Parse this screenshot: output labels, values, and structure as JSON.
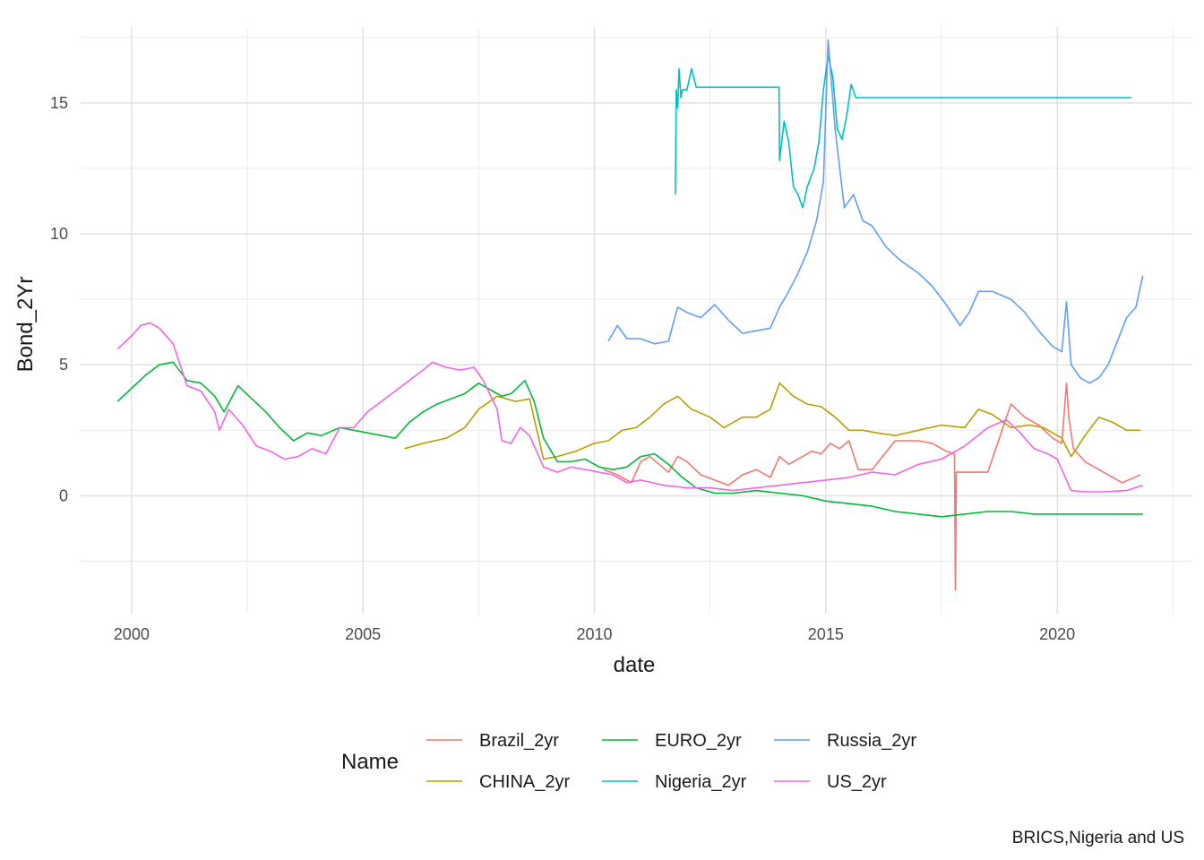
{
  "chart_data": {
    "type": "line",
    "title": "",
    "xlabel": "date",
    "ylabel": "Bond_2Yr",
    "caption": "BRICS,Nigeria and US",
    "legend_title": "Name",
    "legend_position": "bottom",
    "grid": true,
    "x_is_date": true,
    "xlim": [
      1998.9,
      2022.9
    ],
    "ylim": [
      -4.5,
      17.9
    ],
    "x_ticks": [
      2000,
      2005,
      2010,
      2015,
      2020
    ],
    "x_tick_labels": [
      "2000",
      "2005",
      "2010",
      "2015",
      "2020"
    ],
    "y_ticks": [
      0,
      5,
      10,
      15
    ],
    "y_tick_labels": [
      "0",
      "5",
      "10",
      "15"
    ],
    "series": [
      {
        "name": "Brazil_2yr",
        "color": "#F8766D",
        "x": [
          2010.2,
          2010.5,
          2010.8,
          2011.0,
          2011.2,
          2011.4,
          2011.6,
          2011.8,
          2012.0,
          2012.3,
          2012.6,
          2012.9,
          2013.2,
          2013.5,
          2013.8,
          2014.0,
          2014.2,
          2014.5,
          2014.7,
          2014.9,
          2015.1,
          2015.3,
          2015.5,
          2015.7,
          2016.0,
          2016.5,
          2017.0,
          2017.3,
          2017.6,
          2017.78,
          2017.8,
          2017.82,
          2018.0,
          2018.5,
          2019.0,
          2019.3,
          2019.6,
          2019.9,
          2020.1,
          2020.2,
          2020.25,
          2020.35,
          2020.6,
          2021.0,
          2021.4,
          2021.8
        ],
        "y": [
          1.0,
          0.8,
          0.5,
          1.3,
          1.5,
          1.2,
          0.9,
          1.5,
          1.3,
          0.8,
          0.6,
          0.4,
          0.8,
          1.0,
          0.7,
          1.5,
          1.2,
          1.5,
          1.7,
          1.6,
          2.0,
          1.8,
          2.1,
          1.0,
          1.0,
          2.1,
          2.1,
          2.0,
          1.7,
          1.6,
          -3.6,
          0.9,
          0.9,
          0.9,
          3.5,
          3.0,
          2.7,
          2.2,
          2.0,
          4.3,
          3.0,
          1.8,
          1.3,
          0.9,
          0.5,
          0.8
        ]
      },
      {
        "name": "CHINA_2yr",
        "color": "#B79F00",
        "x": [
          2005.9,
          2006.3,
          2006.8,
          2007.2,
          2007.5,
          2007.9,
          2008.3,
          2008.6,
          2008.9,
          2009.2,
          2009.6,
          2010.0,
          2010.3,
          2010.6,
          2010.9,
          2011.2,
          2011.5,
          2011.8,
          2012.1,
          2012.5,
          2012.8,
          2013.2,
          2013.5,
          2013.8,
          2014.0,
          2014.3,
          2014.6,
          2014.9,
          2015.2,
          2015.5,
          2015.8,
          2016.1,
          2016.5,
          2017.0,
          2017.5,
          2018.0,
          2018.3,
          2018.6,
          2019.0,
          2019.4,
          2019.7,
          2020.1,
          2020.3,
          2020.6,
          2020.9,
          2021.2,
          2021.5,
          2021.8
        ],
        "y": [
          1.8,
          2.0,
          2.2,
          2.6,
          3.3,
          3.8,
          3.6,
          3.7,
          1.4,
          1.5,
          1.7,
          2.0,
          2.1,
          2.5,
          2.6,
          3.0,
          3.5,
          3.8,
          3.3,
          3.0,
          2.6,
          3.0,
          3.0,
          3.3,
          4.3,
          3.8,
          3.5,
          3.4,
          3.0,
          2.5,
          2.5,
          2.4,
          2.3,
          2.5,
          2.7,
          2.6,
          3.3,
          3.1,
          2.6,
          2.7,
          2.6,
          2.2,
          1.5,
          2.3,
          3.0,
          2.8,
          2.5,
          2.5
        ]
      },
      {
        "name": "EURO_2yr",
        "color": "#00BA38",
        "x": [
          1999.7,
          2000.0,
          2000.3,
          2000.6,
          2000.9,
          2001.2,
          2001.5,
          2001.8,
          2002.0,
          2002.3,
          2002.6,
          2002.9,
          2003.2,
          2003.5,
          2003.8,
          2004.1,
          2004.5,
          2004.8,
          2005.1,
          2005.4,
          2005.7,
          2006.0,
          2006.3,
          2006.6,
          2006.9,
          2007.2,
          2007.5,
          2007.8,
          2008.0,
          2008.2,
          2008.5,
          2008.7,
          2008.9,
          2009.2,
          2009.5,
          2009.8,
          2010.1,
          2010.4,
          2010.7,
          2011.0,
          2011.3,
          2011.6,
          2011.9,
          2012.2,
          2012.6,
          2013.0,
          2013.5,
          2014.0,
          2014.5,
          2015.0,
          2015.5,
          2016.0,
          2016.5,
          2017.0,
          2017.5,
          2018.0,
          2018.5,
          2019.0,
          2019.5,
          2020.0,
          2020.5,
          2021.0,
          2021.5,
          2021.85
        ],
        "y": [
          3.6,
          4.1,
          4.6,
          5.0,
          5.1,
          4.4,
          4.3,
          3.8,
          3.2,
          4.2,
          3.7,
          3.2,
          2.6,
          2.1,
          2.4,
          2.3,
          2.6,
          2.5,
          2.4,
          2.3,
          2.2,
          2.8,
          3.2,
          3.5,
          3.7,
          3.9,
          4.3,
          4.0,
          3.8,
          3.9,
          4.4,
          3.6,
          2.2,
          1.3,
          1.3,
          1.4,
          1.1,
          1.0,
          1.1,
          1.5,
          1.6,
          1.2,
          0.7,
          0.3,
          0.1,
          0.1,
          0.2,
          0.1,
          0.0,
          -0.2,
          -0.3,
          -0.4,
          -0.6,
          -0.7,
          -0.8,
          -0.7,
          -0.6,
          -0.6,
          -0.7,
          -0.7,
          -0.7,
          -0.7,
          -0.7,
          -0.7
        ]
      },
      {
        "name": "Nigeria_2yr",
        "color": "#00BFC4",
        "x": [
          2011.75,
          2011.77,
          2011.8,
          2011.83,
          2011.87,
          2011.9,
          2012.0,
          2012.1,
          2012.2,
          2012.3,
          2013.0,
          2013.99,
          2014.0,
          2014.1,
          2014.2,
          2014.3,
          2014.4,
          2014.5,
          2014.6,
          2014.75,
          2014.85,
          2014.95,
          2015.05,
          2015.15,
          2015.25,
          2015.35,
          2015.45,
          2015.55,
          2015.65,
          2015.8,
          2016.5,
          2017.5,
          2018.5,
          2019.5,
          2020.5,
          2021.6
        ],
        "y": [
          11.5,
          15.5,
          14.8,
          16.3,
          15.2,
          15.5,
          15.5,
          16.3,
          15.6,
          15.6,
          15.6,
          15.6,
          12.8,
          14.3,
          13.5,
          11.8,
          11.5,
          11.0,
          11.8,
          12.5,
          13.5,
          15.5,
          16.8,
          16.0,
          14.0,
          13.6,
          14.5,
          15.7,
          15.2,
          15.2,
          15.2,
          15.2,
          15.2,
          15.2,
          15.2,
          15.2
        ]
      },
      {
        "name": "Russia_2yr",
        "color": "#619CFF",
        "x": [
          2010.3,
          2010.5,
          2010.7,
          2011.0,
          2011.3,
          2011.6,
          2011.8,
          2012.0,
          2012.3,
          2012.6,
          2012.9,
          2013.2,
          2013.5,
          2013.8,
          2014.0,
          2014.2,
          2014.4,
          2014.6,
          2014.8,
          2014.95,
          2015.05,
          2015.2,
          2015.4,
          2015.6,
          2015.8,
          2016.0,
          2016.3,
          2016.6,
          2017.0,
          2017.3,
          2017.6,
          2017.9,
          2018.1,
          2018.3,
          2018.6,
          2019.0,
          2019.3,
          2019.6,
          2019.9,
          2020.1,
          2020.2,
          2020.3,
          2020.5,
          2020.7,
          2020.9,
          2021.1,
          2021.3,
          2021.5,
          2021.7,
          2021.85
        ],
        "y": [
          5.9,
          6.5,
          6.0,
          6.0,
          5.8,
          5.9,
          7.2,
          7.0,
          6.8,
          7.3,
          6.7,
          6.2,
          6.3,
          6.4,
          7.2,
          7.8,
          8.5,
          9.3,
          10.5,
          12.0,
          17.4,
          14.0,
          11.0,
          11.5,
          10.5,
          10.3,
          9.5,
          9.0,
          8.5,
          8.0,
          7.3,
          6.5,
          7.0,
          7.8,
          7.8,
          7.5,
          7.0,
          6.3,
          5.7,
          5.5,
          7.4,
          5.0,
          4.5,
          4.3,
          4.5,
          5.0,
          5.9,
          6.8,
          7.2,
          8.4
        ]
      },
      {
        "name": "US_2yr",
        "color": "#F564E3",
        "x": [
          1999.7,
          2000.0,
          2000.2,
          2000.4,
          2000.6,
          2000.9,
          2001.2,
          2001.5,
          2001.8,
          2001.9,
          2002.1,
          2002.4,
          2002.7,
          2003.0,
          2003.3,
          2003.6,
          2003.9,
          2004.2,
          2004.5,
          2004.8,
          2005.1,
          2005.4,
          2005.7,
          2006.0,
          2006.3,
          2006.5,
          2006.8,
          2007.1,
          2007.4,
          2007.6,
          2007.9,
          2008.0,
          2008.2,
          2008.4,
          2008.6,
          2008.9,
          2009.2,
          2009.5,
          2009.8,
          2010.1,
          2010.4,
          2010.7,
          2011.0,
          2011.5,
          2012.0,
          2012.5,
          2013.0,
          2013.5,
          2014.0,
          2014.5,
          2015.0,
          2015.5,
          2016.0,
          2016.5,
          2017.0,
          2017.5,
          2018.0,
          2018.5,
          2018.9,
          2019.2,
          2019.5,
          2019.8,
          2020.0,
          2020.2,
          2020.3,
          2020.6,
          2021.0,
          2021.5,
          2021.85
        ],
        "y": [
          5.6,
          6.1,
          6.5,
          6.6,
          6.4,
          5.8,
          4.2,
          4.0,
          3.2,
          2.5,
          3.3,
          2.7,
          1.9,
          1.7,
          1.4,
          1.5,
          1.8,
          1.6,
          2.6,
          2.6,
          3.2,
          3.6,
          4.0,
          4.4,
          4.8,
          5.1,
          4.9,
          4.8,
          4.9,
          4.4,
          3.3,
          2.1,
          2.0,
          2.6,
          2.3,
          1.1,
          0.9,
          1.1,
          1.0,
          0.9,
          0.8,
          0.5,
          0.6,
          0.4,
          0.3,
          0.3,
          0.2,
          0.3,
          0.4,
          0.5,
          0.6,
          0.7,
          0.9,
          0.8,
          1.2,
          1.4,
          1.9,
          2.6,
          2.9,
          2.4,
          1.8,
          1.6,
          1.4,
          0.6,
          0.2,
          0.15,
          0.15,
          0.2,
          0.4
        ]
      }
    ]
  }
}
